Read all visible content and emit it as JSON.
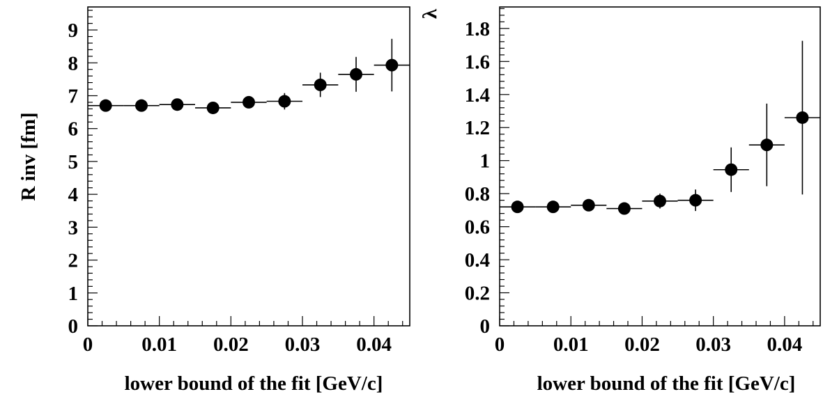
{
  "chart_data": [
    {
      "type": "scatter",
      "title": "",
      "xlabel": "lower bound of the fit [GeV/c]",
      "ylabel": "R inv [fm]",
      "xlim": [
        0,
        0.045
      ],
      "ylim": [
        0,
        9.7
      ],
      "x_ticks": [
        0,
        0.01,
        0.02,
        0.03,
        0.04
      ],
      "x_tick_labels": [
        "0",
        "0.01",
        "0.02",
        "0.03",
        "0.04"
      ],
      "y_ticks": [
        0,
        1,
        2,
        3,
        4,
        5,
        6,
        7,
        8,
        9
      ],
      "y_tick_labels": [
        "0",
        "1",
        "2",
        "3",
        "4",
        "5",
        "6",
        "7",
        "8",
        "9"
      ],
      "grid": false,
      "series": [
        {
          "x": [
            0.0025,
            0.0075,
            0.0125,
            0.0175,
            0.0225,
            0.0275,
            0.0325,
            0.0375,
            0.0425
          ],
          "x_err": [
            0.0025,
            0.0025,
            0.0025,
            0.0025,
            0.0025,
            0.0025,
            0.0025,
            0.0025,
            0.0025
          ],
          "y": [
            6.7,
            6.7,
            6.73,
            6.63,
            6.8,
            6.83,
            7.33,
            7.65,
            7.93
          ],
          "y_err": [
            0.05,
            0.05,
            0.06,
            0.08,
            0.12,
            0.25,
            0.37,
            0.53,
            0.8
          ]
        }
      ]
    },
    {
      "type": "scatter",
      "title": "",
      "xlabel": "lower bound of the fit [GeV/c]",
      "ylabel": "λ",
      "xlim": [
        0,
        0.045
      ],
      "ylim": [
        0,
        1.93
      ],
      "x_ticks": [
        0,
        0.01,
        0.02,
        0.03,
        0.04
      ],
      "x_tick_labels": [
        "0",
        "0.01",
        "0.02",
        "0.03",
        "0.04"
      ],
      "y_ticks": [
        0,
        0.2,
        0.4,
        0.6,
        0.8,
        1.0,
        1.2,
        1.4,
        1.6,
        1.8
      ],
      "y_tick_labels": [
        "0",
        "0.2",
        "0.4",
        "0.6",
        "0.8",
        "1",
        "1.2",
        "1.4",
        "1.6",
        "1.8"
      ],
      "grid": false,
      "series": [
        {
          "x": [
            0.0025,
            0.0075,
            0.0125,
            0.0175,
            0.0225,
            0.0275,
            0.0325,
            0.0375,
            0.0425
          ],
          "x_err": [
            0.0025,
            0.0025,
            0.0025,
            0.0025,
            0.0025,
            0.0025,
            0.0025,
            0.0025,
            0.0025
          ],
          "y": [
            0.72,
            0.72,
            0.73,
            0.71,
            0.755,
            0.76,
            0.945,
            1.095,
            1.26
          ],
          "y_err": [
            0.01,
            0.01,
            0.015,
            0.02,
            0.045,
            0.065,
            0.135,
            0.25,
            0.465
          ]
        }
      ]
    }
  ]
}
